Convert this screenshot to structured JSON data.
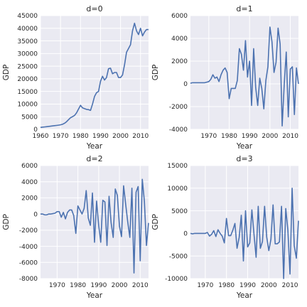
{
  "colors": {
    "series": "#4c72b0",
    "plot_background": "#eaeaf2",
    "grid": "#ffffff"
  },
  "chart_data": [
    {
      "type": "line",
      "title": "d=0",
      "xlabel": "Year",
      "ylabel": "GDP",
      "xlim": [
        1960,
        2014
      ],
      "ylim": [
        0,
        45000
      ],
      "xticks": [
        1960,
        1970,
        1980,
        1990,
        2000,
        2010
      ],
      "yticks": [
        0,
        5000,
        10000,
        15000,
        20000,
        25000,
        30000,
        35000,
        40000,
        45000
      ],
      "grid": true,
      "x": [
        1960,
        1961,
        1962,
        1963,
        1964,
        1965,
        1966,
        1967,
        1968,
        1969,
        1970,
        1971,
        1972,
        1973,
        1974,
        1975,
        1976,
        1977,
        1978,
        1979,
        1980,
        1981,
        1982,
        1983,
        1984,
        1985,
        1986,
        1987,
        1988,
        1989,
        1990,
        1991,
        1992,
        1993,
        1994,
        1995,
        1996,
        1997,
        1998,
        1999,
        2000,
        2001,
        2002,
        2003,
        2004,
        2005,
        2006,
        2007,
        2008,
        2009,
        2010,
        2011,
        2012,
        2013,
        2014
      ],
      "series": [
        {
          "values": [
            750,
            850,
            950,
            1050,
            1150,
            1250,
            1350,
            1450,
            1550,
            1650,
            1800,
            2000,
            2400,
            3000,
            3800,
            4600,
            5000,
            5500,
            6500,
            8000,
            9500,
            8500,
            8200,
            7900,
            7800,
            7500,
            10000,
            13000,
            14500,
            15000,
            19000,
            21000,
            19500,
            20500,
            24000,
            24200,
            22000,
            22500,
            22500,
            20500,
            20500,
            21500,
            25500,
            30500,
            32000,
            33500,
            39000,
            42000,
            39000,
            37500,
            40000,
            37000,
            38500,
            39500,
            39500
          ]
        }
      ]
    },
    {
      "type": "line",
      "title": "d=1",
      "xlabel": "Year",
      "ylabel": "GDP",
      "xlim": [
        1961,
        2014
      ],
      "ylim": [
        -4000,
        6000
      ],
      "xticks": [
        1970,
        1980,
        1990,
        2000,
        2010
      ],
      "yticks": [
        -4000,
        -2000,
        0,
        2000,
        4000,
        6000
      ],
      "grid": true,
      "x": [
        1961,
        1962,
        1963,
        1964,
        1965,
        1966,
        1967,
        1968,
        1969,
        1970,
        1971,
        1972,
        1973,
        1974,
        1975,
        1976,
        1977,
        1978,
        1979,
        1980,
        1981,
        1982,
        1983,
        1984,
        1985,
        1986,
        1987,
        1988,
        1989,
        1990,
        1991,
        1992,
        1993,
        1994,
        1995,
        1996,
        1997,
        1998,
        1999,
        2000,
        2001,
        2002,
        2003,
        2004,
        2005,
        2006,
        2007,
        2008,
        2009,
        2010,
        2011,
        2012,
        2013,
        2014
      ],
      "series": [
        {
          "values": [
            50,
            100,
            100,
            100,
            100,
            100,
            100,
            100,
            150,
            200,
            400,
            800,
            500,
            600,
            200,
            800,
            1200,
            1400,
            1000,
            -1300,
            -400,
            -400,
            -400,
            300,
            3100,
            2600,
            1200,
            3800,
            600,
            2000,
            -1900,
            3100,
            -300,
            -1900,
            500,
            -400,
            -2200,
            300,
            1500,
            5000,
            3700,
            1000,
            1900,
            4900,
            3500,
            -3700,
            -100,
            2800,
            -2900,
            1300,
            1500,
            -2700,
            1400,
            0
          ]
        }
      ]
    },
    {
      "type": "line",
      "title": "d=2",
      "xlabel": "Year",
      "ylabel": "GDP",
      "xlim": [
        1962,
        2014
      ],
      "ylim": [
        -8000,
        6000
      ],
      "xticks": [
        1970,
        1980,
        1990,
        2000,
        2010
      ],
      "yticks": [
        -8000,
        -6000,
        -4000,
        -2000,
        0,
        2000,
        4000,
        6000
      ],
      "grid": true,
      "x": [
        1962,
        1963,
        1964,
        1965,
        1966,
        1967,
        1968,
        1969,
        1970,
        1971,
        1972,
        1973,
        1974,
        1975,
        1976,
        1977,
        1978,
        1979,
        1980,
        1981,
        1982,
        1983,
        1984,
        1985,
        1986,
        1987,
        1988,
        1989,
        1990,
        1991,
        1992,
        1993,
        1994,
        1995,
        1996,
        1997,
        1998,
        1999,
        2000,
        2001,
        2002,
        2003,
        2004,
        2005,
        2006,
        2007,
        2008,
        2009,
        2010,
        2011,
        2012,
        2013,
        2014
      ],
      "series": [
        {
          "values": [
            0,
            0,
            -100,
            -100,
            0,
            0,
            50,
            100,
            300,
            300,
            -400,
            200,
            -600,
            200,
            500,
            500,
            -200,
            -2400,
            1000,
            500,
            0,
            700,
            2900,
            -500,
            -1400,
            2600,
            -3500,
            1600,
            -1400,
            -3500,
            1700,
            1500,
            -3900,
            2200,
            -1100,
            -2900,
            3100,
            2300,
            -1500,
            -2800,
            3500,
            1200,
            -1000,
            -2900,
            3200,
            -7300,
            2700,
            3400,
            -5800,
            4300,
            1600,
            -3900,
            -1100
          ]
        }
      ]
    },
    {
      "type": "line",
      "title": "d=3",
      "xlabel": "Year",
      "ylabel": "GDP",
      "xlim": [
        1963,
        2014
      ],
      "ylim": [
        -10000,
        15000
      ],
      "xticks": [
        1970,
        1980,
        1990,
        2000,
        2010
      ],
      "yticks": [
        -10000,
        -5000,
        0,
        5000,
        10000,
        15000
      ],
      "grid": true,
      "x": [
        1963,
        1964,
        1965,
        1966,
        1967,
        1968,
        1969,
        1970,
        1971,
        1972,
        1973,
        1974,
        1975,
        1976,
        1977,
        1978,
        1979,
        1980,
        1981,
        1982,
        1983,
        1984,
        1985,
        1986,
        1987,
        1988,
        1989,
        1990,
        1991,
        1992,
        1993,
        1994,
        1995,
        1996,
        1997,
        1998,
        1999,
        2000,
        2001,
        2002,
        2003,
        2004,
        2005,
        2006,
        2007,
        2008,
        2009,
        2010,
        2011,
        2012,
        2013,
        2014
      ],
      "series": [
        {
          "values": [
            0,
            -100,
            0,
            0,
            0,
            0,
            0,
            0,
            200,
            -600,
            -200,
            600,
            -700,
            800,
            0,
            -600,
            -2100,
            3300,
            -500,
            -500,
            700,
            2200,
            -3300,
            -900,
            4000,
            -6100,
            5000,
            -3000,
            -2100,
            5200,
            -200,
            -5300,
            6000,
            -3300,
            -1800,
            6000,
            -800,
            -3800,
            -1300,
            6300,
            -2300,
            -2300,
            -1900,
            6000,
            -10000,
            5500,
            700,
            -9000,
            10000,
            -2700,
            -5500,
            2800
          ]
        }
      ]
    }
  ]
}
